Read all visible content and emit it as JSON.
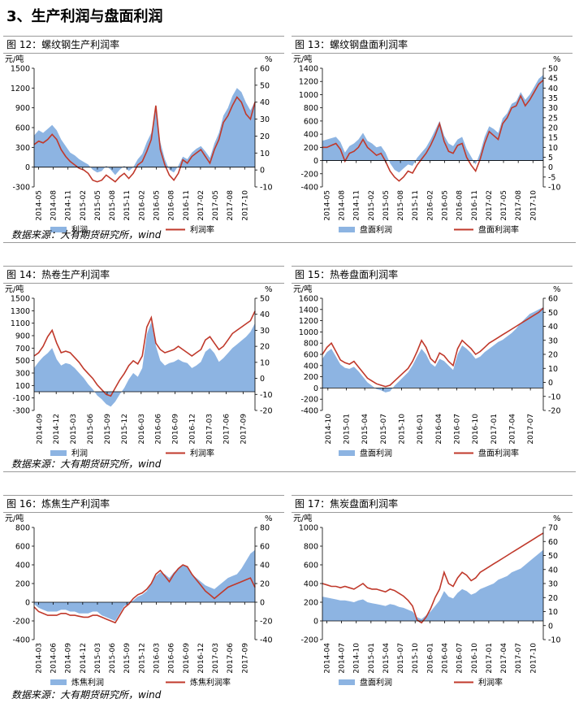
{
  "section_title": "3、生产利润与盘面利润",
  "source_note": "数据来源：大有期货研究所，wind",
  "colors": {
    "area": "#8db4e2",
    "line": "#c0392b"
  },
  "charts": [
    {
      "id": "fig12",
      "caption": "图 12：螺纹钢生产利润率",
      "chart_data": {
        "type": "area",
        "title": "螺纹钢生产利润率",
        "ylabel_left": "元/吨",
        "ylabel_right": "%",
        "left_ticks": [
          "1500",
          "1200",
          "900",
          "600",
          "300",
          "0",
          "-300"
        ],
        "right_ticks": [
          "60",
          "50",
          "40",
          "30",
          "20",
          "10",
          "0",
          "-10"
        ],
        "ylim": [
          -300,
          1500
        ],
        "y2lim": [
          -10,
          60
        ],
        "x_labels": [
          "2014-05",
          "2014-08",
          "2014-11",
          "2015-02",
          "2015-05",
          "2015-08",
          "2015-11",
          "2016-02",
          "2016-05",
          "2016-08",
          "2016-11",
          "2017-02",
          "2017-05",
          "2017-08"
        ],
        "x_end_label": "2017-10",
        "series": [
          {
            "name": "利润",
            "kind": "area",
            "values": [
              480,
              560,
              520,
              580,
              640,
              560,
              420,
              320,
              220,
              180,
              120,
              80,
              40,
              -40,
              -80,
              -60,
              20,
              -40,
              -120,
              -40,
              20,
              -60,
              0,
              120,
              200,
              380,
              520,
              860,
              380,
              120,
              -40,
              -80,
              20,
              160,
              120,
              220,
              280,
              320,
              240,
              140,
              360,
              520,
              780,
              900,
              1080,
              1200,
              1140,
              980,
              860,
              1000
            ]
          },
          {
            "name": "利润率",
            "kind": "line",
            "values": [
              15,
              17,
              16,
              18,
              21,
              18,
              12,
              8,
              5,
              3,
              1,
              0,
              -2,
              -6,
              -7,
              -6,
              -3,
              -5,
              -7,
              -4,
              -2,
              -5,
              -2,
              3,
              5,
              11,
              18,
              38,
              12,
              3,
              -3,
              -6,
              -2,
              6,
              4,
              8,
              10,
              12,
              8,
              4,
              12,
              18,
              28,
              32,
              38,
              43,
              40,
              33,
              30,
              40
            ]
          }
        ]
      }
    },
    {
      "id": "fig13",
      "caption": "图 13：螺纹钢盘面利润率",
      "chart_data": {
        "type": "area",
        "title": "螺纹钢盘面利润率",
        "ylabel_left": "元/吨",
        "ylabel_right": "%",
        "left_ticks": [
          "1400",
          "1200",
          "1000",
          "800",
          "600",
          "400",
          "200",
          "0",
          "-200",
          "-400"
        ],
        "right_ticks": [
          "50",
          "45",
          "40",
          "35",
          "30",
          "25",
          "20",
          "15",
          "10",
          "5",
          "0",
          "-5",
          "-10"
        ],
        "ylim": [
          -400,
          1400
        ],
        "y2lim": [
          -10,
          50
        ],
        "x_labels": [
          "2014-05",
          "2014-08",
          "2014-11",
          "2015-02",
          "2015-05",
          "2015-08",
          "2015-11",
          "2016-02",
          "2016-05",
          "2016-08",
          "2016-11",
          "2017-02",
          "2017-05",
          "2017-08"
        ],
        "x_end_label": "2017-10",
        "series": [
          {
            "name": "盘面利润",
            "kind": "area",
            "values": [
              300,
              320,
              340,
              360,
              280,
              120,
              220,
              260,
              320,
              420,
              300,
              260,
              200,
              220,
              120,
              -40,
              -140,
              -180,
              -120,
              -60,
              -80,
              40,
              120,
              200,
              320,
              460,
              600,
              380,
              260,
              220,
              320,
              360,
              180,
              60,
              -60,
              120,
              360,
              520,
              480,
              420,
              640,
              720,
              860,
              900,
              1040,
              920,
              1000,
              1120,
              1240,
              1300
            ]
          },
          {
            "name": "盘面利润率",
            "kind": "line",
            "values": [
              10,
              10,
              11,
              12,
              9,
              3,
              7,
              8,
              10,
              14,
              10,
              8,
              6,
              7,
              3,
              -2,
              -5,
              -7,
              -5,
              -2,
              -3,
              1,
              4,
              7,
              11,
              16,
              22,
              13,
              8,
              7,
              11,
              12,
              5,
              1,
              -2,
              4,
              12,
              18,
              16,
              14,
              22,
              25,
              30,
              31,
              36,
              31,
              34,
              38,
              42,
              44
            ]
          }
        ]
      }
    },
    {
      "id": "fig14",
      "caption": "图 14：热卷生产利润率",
      "chart_data": {
        "type": "area",
        "title": "热卷生产利润率",
        "ylabel_left": "元/吨",
        "ylabel_right": "%",
        "left_ticks": [
          "1500",
          "1300",
          "1100",
          "900",
          "700",
          "500",
          "300",
          "100",
          "-100",
          "-300"
        ],
        "right_ticks": [
          "50",
          "40",
          "30",
          "20",
          "10",
          "0",
          "-10",
          "-20"
        ],
        "ylim": [
          -300,
          1500
        ],
        "y2lim": [
          -20,
          50
        ],
        "x_labels": [
          "2014-09",
          "2014-12",
          "2015-03",
          "2015-06",
          "2015-09",
          "2015-12",
          "2016-03",
          "2016-06",
          "2016-09",
          "2016-12",
          "2017-03",
          "2017-06",
          "2017-09"
        ],
        "x_end_label": "",
        "series": [
          {
            "name": "利润",
            "kind": "area",
            "values": [
              380,
              480,
              560,
              620,
              700,
              520,
              420,
              460,
              440,
              380,
              300,
              220,
              120,
              40,
              -60,
              -120,
              -200,
              -240,
              -160,
              -40,
              60,
              200,
              300,
              240,
              380,
              920,
              1120,
              740,
              500,
              420,
              460,
              480,
              520,
              480,
              460,
              380,
              420,
              480,
              640,
              700,
              620,
              480,
              540,
              620,
              700,
              760,
              820,
              880,
              960,
              1100
            ]
          },
          {
            "name": "利润率",
            "kind": "line",
            "values": [
              14,
              16,
              20,
              26,
              30,
              22,
              16,
              17,
              16,
              13,
              10,
              6,
              3,
              0,
              -4,
              -7,
              -10,
              -11,
              -6,
              -1,
              3,
              8,
              11,
              9,
              14,
              32,
              38,
              22,
              18,
              16,
              17,
              18,
              20,
              18,
              16,
              14,
              16,
              18,
              24,
              26,
              22,
              18,
              20,
              24,
              28,
              30,
              32,
              34,
              36,
              42
            ]
          }
        ]
      }
    },
    {
      "id": "fig15",
      "caption": "图 15：热卷盘面利润率",
      "chart_data": {
        "type": "area",
        "title": "热卷盘面利润率",
        "ylabel_left": "元/吨",
        "ylabel_right": "%",
        "left_ticks": [
          "1600",
          "1400",
          "1200",
          "1000",
          "800",
          "600",
          "400",
          "200",
          "0",
          "-200",
          "-400"
        ],
        "right_ticks": [
          "60",
          "50",
          "40",
          "30",
          "20",
          "10",
          "0",
          "-10",
          "-20"
        ],
        "ylim": [
          -400,
          1600
        ],
        "y2lim": [
          -20,
          60
        ],
        "x_labels": [
          "2014-10",
          "2015-01",
          "2015-04",
          "2015-07",
          "2015-10",
          "2016-01",
          "2016-04",
          "2016-07",
          "2016-10",
          "2017-01",
          "2017-04",
          "2017-07"
        ],
        "x_end_label": "",
        "series": [
          {
            "name": "盘面利润",
            "kind": "area",
            "values": [
              520,
              640,
              700,
              560,
              420,
              360,
              340,
              380,
              300,
              200,
              100,
              40,
              -20,
              -40,
              -80,
              -60,
              40,
              120,
              200,
              280,
              400,
              560,
              700,
              600,
              440,
              380,
              520,
              480,
              400,
              320,
              600,
              760,
              700,
              620,
              520,
              560,
              640,
              700,
              760,
              820,
              860,
              920,
              980,
              1060,
              1160,
              1240,
              1320,
              1360,
              1400,
              1440
            ]
          },
          {
            "name": "盘面利润率",
            "kind": "line",
            "values": [
              20,
              25,
              28,
              22,
              16,
              14,
              13,
              15,
              11,
              7,
              3,
              1,
              -1,
              -2,
              -3,
              -2,
              1,
              4,
              7,
              10,
              15,
              22,
              30,
              25,
              17,
              14,
              21,
              19,
              15,
              12,
              24,
              30,
              27,
              24,
              20,
              22,
              25,
              28,
              30,
              32,
              34,
              36,
              38,
              40,
              42,
              44,
              46,
              48,
              50,
              53
            ]
          }
        ]
      }
    },
    {
      "id": "fig16",
      "caption": "图 16：炼焦生产利润率",
      "chart_data": {
        "type": "area",
        "title": "炼焦生产利润率",
        "ylabel_left": "元/吨",
        "ylabel_right": "%",
        "left_ticks": [
          "800",
          "600",
          "400",
          "200",
          "0",
          "-200",
          "-400"
        ],
        "right_ticks": [
          "80",
          "60",
          "40",
          "20",
          "0",
          "-20",
          "-40"
        ],
        "ylim": [
          -400,
          800
        ],
        "y2lim": [
          -40,
          80
        ],
        "x_labels": [
          "2014-03",
          "2014-06",
          "2014-09",
          "2014-12",
          "2015-03",
          "2015-06",
          "2015-09",
          "2015-12",
          "2016-03",
          "2016-06",
          "2016-09",
          "2016-12",
          "2017-03",
          "2017-06",
          "2017-09"
        ],
        "x_end_label": "",
        "series": [
          {
            "name": "炼焦利润",
            "kind": "area",
            "values": [
              -20,
              -60,
              -80,
              -100,
              -100,
              -100,
              -80,
              -80,
              -100,
              -100,
              -120,
              -120,
              -120,
              -100,
              -100,
              -140,
              -160,
              -180,
              -200,
              -120,
              -40,
              -20,
              20,
              60,
              80,
              120,
              200,
              280,
              320,
              300,
              260,
              320,
              360,
              400,
              380,
              300,
              260,
              220,
              180,
              160,
              140,
              180,
              220,
              260,
              280,
              300,
              360,
              440,
              520,
              560
            ]
          },
          {
            "name": "炼焦利润率",
            "kind": "line",
            "values": [
              -5,
              -10,
              -12,
              -14,
              -14,
              -14,
              -12,
              -12,
              -14,
              -14,
              -15,
              -16,
              -16,
              -14,
              -14,
              -16,
              -18,
              -20,
              -22,
              -14,
              -6,
              -2,
              4,
              8,
              10,
              14,
              20,
              30,
              34,
              28,
              22,
              30,
              36,
              40,
              38,
              30,
              24,
              18,
              12,
              8,
              4,
              8,
              12,
              16,
              18,
              20,
              22,
              24,
              26,
              16
            ]
          }
        ]
      }
    },
    {
      "id": "fig17",
      "caption": "图 17：焦炭盘面利润率",
      "chart_data": {
        "type": "area",
        "title": "焦炭盘面利润率",
        "ylabel_left": "元/吨",
        "ylabel_right": "%",
        "left_ticks": [
          "1000",
          "800",
          "600",
          "400",
          "200",
          "0",
          "-200"
        ],
        "right_ticks": [
          "70",
          "60",
          "50",
          "40",
          "30",
          "20",
          "10",
          "0",
          "-10"
        ],
        "ylim": [
          -200,
          1000
        ],
        "y2lim": [
          -10,
          70
        ],
        "x_labels": [
          "2014-04",
          "2014-07",
          "2014-10",
          "2015-01",
          "2015-04",
          "2015-07",
          "2015-10",
          "2016-01",
          "2016-04",
          "2016-07",
          "2016-10",
          "2017-01",
          "2017-04",
          "2017-07",
          "2017-10"
        ],
        "x_end_label": "",
        "series": [
          {
            "name": "盘面利润",
            "kind": "area",
            "values": [
              260,
              250,
              240,
              230,
              220,
              220,
              210,
              200,
              220,
              230,
              200,
              190,
              180,
              170,
              160,
              180,
              170,
              150,
              140,
              120,
              100,
              40,
              20,
              60,
              100,
              160,
              220,
              320,
              260,
              240,
              300,
              340,
              320,
              280,
              300,
              340,
              360,
              380,
              400,
              440,
              460,
              480,
              520,
              540,
              560,
              600,
              640,
              680,
              720,
              760
            ]
          },
          {
            "name": "利润率",
            "kind": "line",
            "values": [
              30,
              29,
              28,
              28,
              27,
              28,
              27,
              26,
              28,
              30,
              27,
              26,
              26,
              25,
              24,
              26,
              25,
              23,
              21,
              18,
              14,
              4,
              2,
              6,
              12,
              20,
              26,
              38,
              30,
              28,
              34,
              38,
              36,
              32,
              34,
              38,
              40,
              42,
              44,
              46,
              48,
              50,
              52,
              54,
              56,
              58,
              60,
              62,
              64,
              66
            ]
          }
        ]
      }
    }
  ]
}
